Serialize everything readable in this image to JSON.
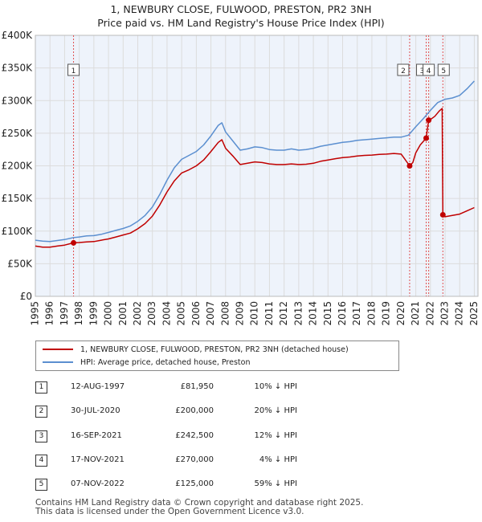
{
  "title": {
    "line1": "1, NEWBURY CLOSE, FULWOOD, PRESTON, PR2 3NH",
    "line2": "Price paid vs. HM Land Registry's House Price Index (HPI)"
  },
  "colors": {
    "red": "#c00000",
    "blue": "#5b8fd0",
    "grid": "#dcdcdc",
    "plot_bg": "#eef3fb",
    "marker_vline": "#e05050"
  },
  "chart_data": {
    "type": "line",
    "xlim": [
      1995,
      2025.25
    ],
    "ylim": [
      0,
      400000
    ],
    "x_ticks": [
      1995,
      1996,
      1997,
      1998,
      1999,
      2000,
      2001,
      2002,
      2003,
      2004,
      2005,
      2006,
      2007,
      2008,
      2009,
      2010,
      2011,
      2012,
      2013,
      2014,
      2015,
      2016,
      2017,
      2018,
      2019,
      2020,
      2021,
      2022,
      2023,
      2024,
      2025
    ],
    "y_ticks": [
      {
        "value": 0,
        "label": "£0"
      },
      {
        "value": 50000,
        "label": "£50K"
      },
      {
        "value": 100000,
        "label": "£100K"
      },
      {
        "value": 150000,
        "label": "£150K"
      },
      {
        "value": 200000,
        "label": "£200K"
      },
      {
        "value": 250000,
        "label": "£250K"
      },
      {
        "value": 300000,
        "label": "£300K"
      },
      {
        "value": 350000,
        "label": "£350K"
      },
      {
        "value": 400000,
        "label": "£400K"
      }
    ],
    "series": [
      {
        "name": "HPI: Average price, detached house, Preston",
        "color": "#5b8fd0",
        "points": [
          [
            1995.0,
            86000
          ],
          [
            1995.5,
            84500
          ],
          [
            1996.0,
            84000
          ],
          [
            1996.5,
            85500
          ],
          [
            1997.0,
            87000
          ],
          [
            1997.6,
            90000
          ],
          [
            1998.0,
            91000
          ],
          [
            1998.5,
            92500
          ],
          [
            1999.0,
            93000
          ],
          [
            1999.5,
            95000
          ],
          [
            2000.0,
            98000
          ],
          [
            2000.5,
            101000
          ],
          [
            2001.0,
            104000
          ],
          [
            2001.5,
            108000
          ],
          [
            2002.0,
            115000
          ],
          [
            2002.5,
            124000
          ],
          [
            2003.0,
            137000
          ],
          [
            2003.5,
            156000
          ],
          [
            2004.0,
            178000
          ],
          [
            2004.5,
            197000
          ],
          [
            2005.0,
            210000
          ],
          [
            2005.5,
            216000
          ],
          [
            2006.0,
            222000
          ],
          [
            2006.5,
            232000
          ],
          [
            2007.0,
            246000
          ],
          [
            2007.5,
            262000
          ],
          [
            2007.75,
            266000
          ],
          [
            2008.0,
            252000
          ],
          [
            2008.5,
            238000
          ],
          [
            2009.0,
            224000
          ],
          [
            2009.5,
            226000
          ],
          [
            2010.0,
            229000
          ],
          [
            2010.5,
            228000
          ],
          [
            2011.0,
            225000
          ],
          [
            2011.5,
            224000
          ],
          [
            2012.0,
            224000
          ],
          [
            2012.5,
            226000
          ],
          [
            2013.0,
            224000
          ],
          [
            2013.5,
            225000
          ],
          [
            2014.0,
            227000
          ],
          [
            2014.5,
            230000
          ],
          [
            2015.0,
            232000
          ],
          [
            2015.5,
            234000
          ],
          [
            2016.0,
            236000
          ],
          [
            2016.5,
            237000
          ],
          [
            2017.0,
            239000
          ],
          [
            2017.5,
            240000
          ],
          [
            2018.0,
            241000
          ],
          [
            2018.5,
            242000
          ],
          [
            2019.0,
            243000
          ],
          [
            2019.5,
            244000
          ],
          [
            2020.0,
            244000
          ],
          [
            2020.5,
            247000
          ],
          [
            2021.0,
            260000
          ],
          [
            2021.5,
            272000
          ],
          [
            2022.0,
            285000
          ],
          [
            2022.5,
            297000
          ],
          [
            2023.0,
            302000
          ],
          [
            2023.5,
            304000
          ],
          [
            2024.0,
            308000
          ],
          [
            2024.5,
            318000
          ],
          [
            2025.0,
            330000
          ]
        ]
      },
      {
        "name": "1, NEWBURY CLOSE, FULWOOD, PRESTON, PR2 3NH (detached house)",
        "color": "#c00000",
        "points": [
          [
            1995.0,
            77000
          ],
          [
            1995.5,
            75500
          ],
          [
            1996.0,
            75500
          ],
          [
            1996.5,
            77000
          ],
          [
            1997.0,
            78500
          ],
          [
            1997.61,
            81950
          ],
          [
            1998.0,
            82500
          ],
          [
            1998.5,
            83500
          ],
          [
            1999.0,
            84000
          ],
          [
            1999.5,
            86000
          ],
          [
            2000.0,
            88000
          ],
          [
            2000.5,
            91000
          ],
          [
            2001.0,
            94000
          ],
          [
            2001.5,
            97000
          ],
          [
            2002.0,
            103500
          ],
          [
            2002.5,
            111500
          ],
          [
            2003.0,
            123000
          ],
          [
            2003.5,
            140000
          ],
          [
            2004.0,
            160000
          ],
          [
            2004.5,
            177000
          ],
          [
            2005.0,
            189000
          ],
          [
            2005.5,
            194000
          ],
          [
            2006.0,
            200000
          ],
          [
            2006.5,
            209000
          ],
          [
            2007.0,
            222000
          ],
          [
            2007.5,
            236000
          ],
          [
            2007.75,
            240000
          ],
          [
            2008.0,
            227000
          ],
          [
            2008.5,
            215000
          ],
          [
            2009.0,
            202000
          ],
          [
            2009.5,
            204000
          ],
          [
            2010.0,
            206000
          ],
          [
            2010.5,
            205000
          ],
          [
            2011.0,
            203000
          ],
          [
            2011.5,
            202000
          ],
          [
            2012.0,
            202000
          ],
          [
            2012.5,
            203000
          ],
          [
            2013.0,
            202000
          ],
          [
            2013.5,
            202500
          ],
          [
            2014.0,
            204000
          ],
          [
            2014.5,
            207000
          ],
          [
            2015.0,
            209000
          ],
          [
            2015.5,
            211000
          ],
          [
            2016.0,
            212500
          ],
          [
            2016.5,
            213500
          ],
          [
            2017.0,
            215000
          ],
          [
            2017.5,
            216000
          ],
          [
            2018.0,
            216500
          ],
          [
            2018.5,
            217500
          ],
          [
            2019.0,
            218000
          ],
          [
            2019.5,
            219000
          ],
          [
            2020.0,
            218000
          ],
          [
            2020.2,
            212000
          ],
          [
            2020.58,
            200000
          ],
          [
            2020.8,
            205000
          ],
          [
            2021.0,
            220000
          ],
          [
            2021.3,
            232000
          ],
          [
            2021.71,
            242500
          ],
          [
            2021.88,
            270000
          ],
          [
            2022.0,
            271000
          ],
          [
            2022.3,
            276000
          ],
          [
            2022.6,
            284000
          ],
          [
            2022.8,
            288000
          ],
          [
            2022.85,
            125000
          ],
          [
            2023.0,
            122000
          ],
          [
            2023.5,
            124000
          ],
          [
            2024.0,
            126000
          ],
          [
            2024.5,
            131000
          ],
          [
            2025.0,
            136000
          ]
        ]
      }
    ],
    "markers": [
      {
        "label": "1",
        "x": 1997.61,
        "y": 81950
      },
      {
        "label": "2",
        "x": 2020.58,
        "y": 200000
      },
      {
        "label": "3",
        "x": 2021.71,
        "y": 242500
      },
      {
        "label": "4",
        "x": 2021.88,
        "y": 270000
      },
      {
        "label": "5",
        "x": 2022.85,
        "y": 125000
      }
    ]
  },
  "legend": {
    "red_label": "1, NEWBURY CLOSE, FULWOOD, PRESTON, PR2 3NH (detached house)",
    "blue_label": "HPI: Average price, detached house, Preston"
  },
  "transactions": [
    {
      "num": "1",
      "date": "12-AUG-1997",
      "price": "£81,950",
      "diff": "10% ↓ HPI"
    },
    {
      "num": "2",
      "date": "30-JUL-2020",
      "price": "£200,000",
      "diff": "20% ↓ HPI"
    },
    {
      "num": "3",
      "date": "16-SEP-2021",
      "price": "£242,500",
      "diff": "12% ↓ HPI"
    },
    {
      "num": "4",
      "date": "17-NOV-2021",
      "price": "£270,000",
      "diff": "4% ↓ HPI"
    },
    {
      "num": "5",
      "date": "07-NOV-2022",
      "price": "£125,000",
      "diff": "59% ↓ HPI"
    }
  ],
  "footer": {
    "line1": "Contains HM Land Registry data © Crown copyright and database right 2025.",
    "line2": "This data is licensed under the Open Government Licence v3.0."
  }
}
